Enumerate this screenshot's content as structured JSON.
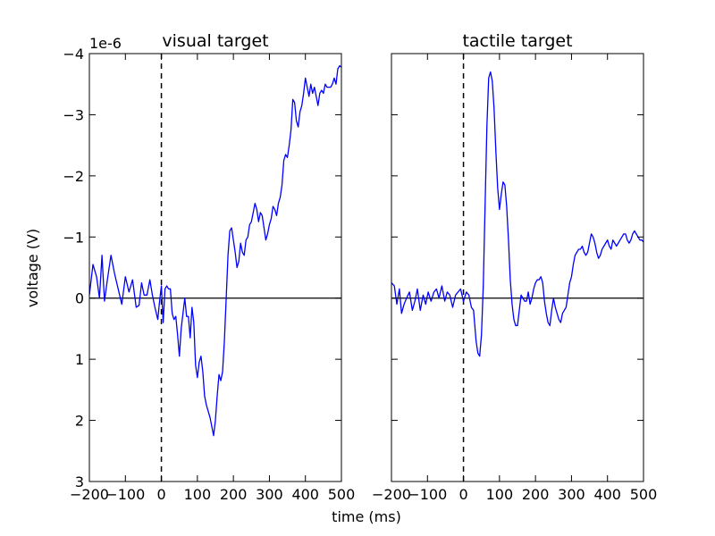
{
  "figure": {
    "xlabel": "time (ms)",
    "ylabel": "voltage (V)",
    "y_offset_text": "1e-6"
  },
  "chart_data": [
    {
      "type": "line",
      "title": "visual target",
      "xlim": [
        -200,
        500
      ],
      "ylim": [
        3,
        -4
      ],
      "y_inverted": true,
      "y_scale_factor": "1e-6",
      "x_ticks": [
        -200,
        -100,
        0,
        100,
        200,
        300,
        400,
        500
      ],
      "x_tick_labels": [
        "−200",
        "−100",
        "0",
        "100",
        "200",
        "300",
        "400",
        "500"
      ],
      "y_ticks": [
        -4,
        -3,
        -2,
        -1,
        0,
        1,
        2,
        3
      ],
      "y_tick_labels": [
        "−4",
        "−3",
        "−2",
        "−1",
        "0",
        "1",
        "2",
        "3"
      ],
      "reference_lines": {
        "horizontal_y": 0,
        "vertical_dashed_x": 0
      },
      "series": [
        {
          "color": "#0000ff",
          "x": [
            -200,
            -190,
            -180,
            -172,
            -165,
            -158,
            -150,
            -140,
            -130,
            -120,
            -110,
            -100,
            -90,
            -80,
            -70,
            -62,
            -55,
            -48,
            -40,
            -32,
            -25,
            -18,
            -10,
            -5,
            0,
            5,
            10,
            15,
            20,
            25,
            30,
            35,
            40,
            45,
            50,
            55,
            60,
            65,
            70,
            75,
            80,
            85,
            90,
            95,
            100,
            105,
            110,
            115,
            120,
            125,
            130,
            135,
            140,
            145,
            150,
            155,
            160,
            165,
            170,
            175,
            180,
            185,
            190,
            195,
            200,
            205,
            210,
            215,
            220,
            225,
            230,
            235,
            240,
            245,
            250,
            255,
            260,
            265,
            270,
            275,
            280,
            285,
            290,
            295,
            300,
            305,
            310,
            315,
            320,
            325,
            330,
            335,
            340,
            345,
            350,
            355,
            360,
            365,
            370,
            375,
            380,
            385,
            390,
            395,
            400,
            405,
            410,
            415,
            420,
            425,
            430,
            435,
            440,
            445,
            450,
            455,
            460,
            465,
            470,
            475,
            480,
            485,
            490,
            495,
            500
          ],
          "y": [
            -0.05,
            -0.55,
            -0.35,
            0.0,
            -0.7,
            0.05,
            -0.3,
            -0.7,
            -0.4,
            -0.15,
            0.1,
            -0.35,
            -0.1,
            -0.3,
            0.15,
            0.12,
            -0.25,
            -0.05,
            -0.05,
            -0.3,
            -0.05,
            0.15,
            0.35,
            0.05,
            -0.2,
            0.4,
            -0.15,
            -0.2,
            -0.15,
            -0.15,
            0.25,
            0.35,
            0.3,
            0.6,
            0.95,
            0.5,
            0.25,
            0.0,
            0.3,
            0.3,
            0.65,
            0.15,
            0.4,
            1.1,
            1.3,
            1.05,
            0.95,
            1.2,
            1.6,
            1.75,
            1.85,
            1.95,
            2.1,
            2.25,
            2.0,
            1.6,
            1.25,
            1.35,
            1.2,
            0.7,
            0.0,
            -0.7,
            -1.1,
            -1.15,
            -0.95,
            -0.75,
            -0.5,
            -0.6,
            -0.9,
            -0.75,
            -0.7,
            -0.95,
            -1.0,
            -1.2,
            -1.25,
            -1.4,
            -1.55,
            -1.45,
            -1.25,
            -1.4,
            -1.35,
            -1.15,
            -0.95,
            -1.05,
            -1.2,
            -1.3,
            -1.5,
            -1.45,
            -1.35,
            -1.55,
            -1.65,
            -1.85,
            -2.25,
            -2.35,
            -2.3,
            -2.5,
            -2.75,
            -3.25,
            -3.2,
            -2.9,
            -2.8,
            -3.05,
            -3.15,
            -3.35,
            -3.6,
            -3.45,
            -3.3,
            -3.5,
            -3.35,
            -3.45,
            -3.3,
            -3.15,
            -3.35,
            -3.4,
            -3.35,
            -3.5,
            -3.45,
            -3.45,
            -3.45,
            -3.5,
            -3.6,
            -3.5,
            -3.75,
            -3.8,
            -3.78
          ]
        }
      ]
    },
    {
      "type": "line",
      "title": "tactile target",
      "xlim": [
        -200,
        500
      ],
      "ylim": [
        3,
        -4
      ],
      "y_inverted": true,
      "y_scale_factor": "1e-6",
      "x_ticks": [
        -200,
        -100,
        0,
        100,
        200,
        300,
        400,
        500
      ],
      "x_tick_labels": [
        "−200",
        "−100",
        "0",
        "100",
        "200",
        "300",
        "400",
        "500"
      ],
      "y_ticks": [
        -4,
        -3,
        -2,
        -1,
        0,
        1,
        2,
        3
      ],
      "y_tick_labels": [
        "",
        "",
        "",
        "",
        "",
        "",
        "",
        ""
      ],
      "reference_lines": {
        "horizontal_y": 0,
        "vertical_dashed_x": 0
      },
      "series": [
        {
          "color": "#0000ff",
          "x": [
            -200,
            -192,
            -185,
            -178,
            -172,
            -165,
            -158,
            -150,
            -142,
            -135,
            -128,
            -120,
            -112,
            -105,
            -98,
            -90,
            -82,
            -75,
            -68,
            -60,
            -52,
            -45,
            -38,
            -30,
            -22,
            -15,
            -8,
            0,
            8,
            15,
            22,
            28,
            35,
            40,
            45,
            50,
            55,
            60,
            65,
            70,
            75,
            80,
            85,
            90,
            95,
            100,
            105,
            110,
            115,
            120,
            125,
            130,
            135,
            140,
            145,
            150,
            155,
            160,
            165,
            170,
            175,
            180,
            185,
            190,
            195,
            200,
            205,
            210,
            215,
            220,
            225,
            230,
            235,
            240,
            245,
            250,
            255,
            260,
            265,
            270,
            275,
            280,
            285,
            290,
            295,
            300,
            305,
            310,
            315,
            320,
            325,
            330,
            335,
            340,
            345,
            350,
            355,
            360,
            365,
            370,
            375,
            380,
            385,
            390,
            395,
            400,
            405,
            410,
            415,
            420,
            425,
            430,
            435,
            440,
            445,
            450,
            455,
            460,
            465,
            470,
            475,
            480,
            485,
            490,
            495,
            500
          ],
          "y": [
            -0.25,
            -0.2,
            0.1,
            -0.15,
            0.25,
            0.1,
            0.0,
            -0.1,
            0.2,
            0.05,
            -0.15,
            0.2,
            -0.05,
            0.1,
            -0.1,
            0.05,
            -0.1,
            -0.15,
            0.0,
            -0.2,
            0.05,
            -0.1,
            -0.05,
            0.15,
            -0.05,
            -0.1,
            -0.15,
            0.05,
            -0.1,
            -0.05,
            0.15,
            0.2,
            0.7,
            0.9,
            0.95,
            0.6,
            -0.2,
            -1.5,
            -2.8,
            -3.6,
            -3.7,
            -3.55,
            -3.1,
            -2.4,
            -1.8,
            -1.45,
            -1.7,
            -1.9,
            -1.85,
            -1.5,
            -0.95,
            -0.3,
            0.1,
            0.35,
            0.45,
            0.45,
            0.2,
            -0.05,
            0.0,
            0.05,
            0.05,
            -0.1,
            0.1,
            0.0,
            -0.15,
            -0.25,
            -0.3,
            -0.3,
            -0.35,
            -0.25,
            0.05,
            0.25,
            0.4,
            0.45,
            0.2,
            0.0,
            0.15,
            0.25,
            0.35,
            0.4,
            0.25,
            0.2,
            0.15,
            -0.05,
            -0.25,
            -0.35,
            -0.55,
            -0.7,
            -0.75,
            -0.8,
            -0.8,
            -0.85,
            -0.75,
            -0.7,
            -0.75,
            -0.9,
            -1.05,
            -1.0,
            -0.9,
            -0.75,
            -0.65,
            -0.7,
            -0.8,
            -0.85,
            -0.9,
            -0.95,
            -0.85,
            -0.8,
            -0.95,
            -0.9,
            -0.85,
            -0.9,
            -0.95,
            -1.0,
            -1.05,
            -1.05,
            -0.95,
            -0.9,
            -0.95,
            -1.05,
            -1.1,
            -1.05,
            -1.0,
            -0.95,
            -0.95,
            -0.92
          ]
        }
      ]
    }
  ]
}
